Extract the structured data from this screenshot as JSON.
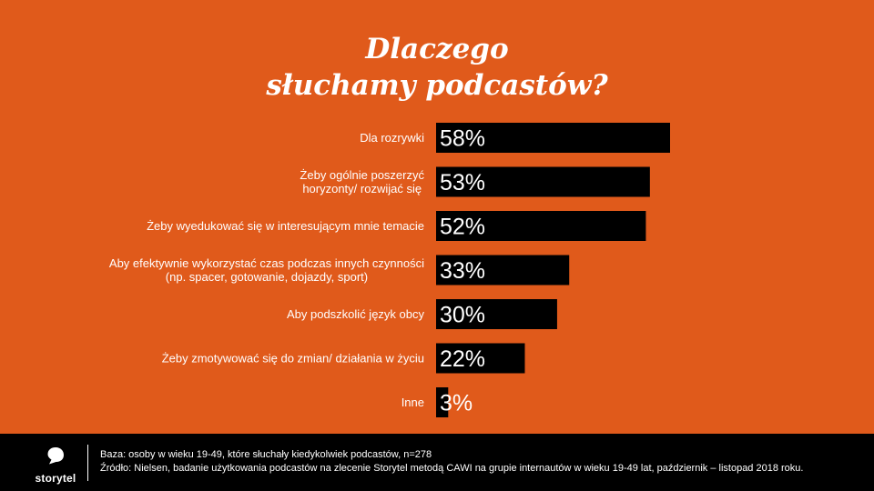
{
  "chart_data": {
    "type": "bar",
    "orientation": "horizontal",
    "title_lines": [
      "Dlaczego",
      "słuchamy podcastów?"
    ],
    "categories": [
      [
        "Dla rozrywki"
      ],
      [
        "Żeby ogólnie poszerzyć",
        "horyzonty/ rozwijać się"
      ],
      [
        "Żeby wyedukować się w interesującym mnie temacie"
      ],
      [
        "Aby efektywnie wykorzystać czas podczas innych czynności",
        "(np. spacer, gotowanie, dojazdy, sport)"
      ],
      [
        "Aby podszkolić język obcy"
      ],
      [
        "Żeby zmotywować się do zmian/ działania w życiu"
      ],
      [
        "Inne"
      ]
    ],
    "values": [
      58,
      53,
      52,
      33,
      30,
      22,
      3
    ],
    "value_labels": [
      "58%",
      "53%",
      "52%",
      "33%",
      "30%",
      "22%",
      "3%"
    ],
    "xlim": [
      0,
      100
    ],
    "bar_color": "#000000",
    "background_color": "#E05A1B"
  },
  "footer": {
    "logo_text": "storytel",
    "base_note": "Baza: osoby w wieku 19-49, które słuchały kiedykolwiek podcastów, n=278",
    "source_note": "Źródło: Nielsen, badanie użytkowania podcastów na zlecenie Storytel metodą CAWI na grupie internautów w wieku 19-49 lat, październik – listopad 2018 roku."
  }
}
